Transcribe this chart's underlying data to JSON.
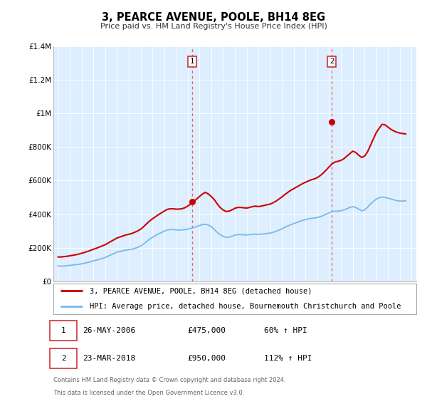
{
  "title": "3, PEARCE AVENUE, POOLE, BH14 8EG",
  "subtitle": "Price paid vs. HM Land Registry's House Price Index (HPI)",
  "bg_color": "#ddeeff",
  "hpi_color": "#7ab8e8",
  "price_color": "#cc0000",
  "vline_color": "#e06060",
  "ylim": [
    0,
    1400000
  ],
  "yticks": [
    0,
    200000,
    400000,
    600000,
    800000,
    1000000,
    1200000,
    1400000
  ],
  "ytick_labels": [
    "£0",
    "£200K",
    "£400K",
    "£600K",
    "£800K",
    "£1M",
    "£1.2M",
    "£1.4M"
  ],
  "xmin": 1994.6,
  "xmax": 2025.4,
  "sale1_x": 2006.4,
  "sale1_y": 475000,
  "sale2_x": 2018.23,
  "sale2_y": 950000,
  "legend_line1": "3, PEARCE AVENUE, POOLE, BH14 8EG (detached house)",
  "legend_line2": "HPI: Average price, detached house, Bournemouth Christchurch and Poole",
  "table_row1": [
    "1",
    "26-MAY-2006",
    "£475,000",
    "60% ↑ HPI"
  ],
  "table_row2": [
    "2",
    "23-MAR-2018",
    "£950,000",
    "112% ↑ HPI"
  ],
  "footer1": "Contains HM Land Registry data © Crown copyright and database right 2024.",
  "footer2": "This data is licensed under the Open Government Licence v3.0.",
  "hpi_data_x": [
    1995.0,
    1995.25,
    1995.5,
    1995.75,
    1996.0,
    1996.25,
    1996.5,
    1996.75,
    1997.0,
    1997.25,
    1997.5,
    1997.75,
    1998.0,
    1998.25,
    1998.5,
    1998.75,
    1999.0,
    1999.25,
    1999.5,
    1999.75,
    2000.0,
    2000.25,
    2000.5,
    2000.75,
    2001.0,
    2001.25,
    2001.5,
    2001.75,
    2002.0,
    2002.25,
    2002.5,
    2002.75,
    2003.0,
    2003.25,
    2003.5,
    2003.75,
    2004.0,
    2004.25,
    2004.5,
    2004.75,
    2005.0,
    2005.25,
    2005.5,
    2005.75,
    2006.0,
    2006.25,
    2006.5,
    2006.75,
    2007.0,
    2007.25,
    2007.5,
    2007.75,
    2008.0,
    2008.25,
    2008.5,
    2008.75,
    2009.0,
    2009.25,
    2009.5,
    2009.75,
    2010.0,
    2010.25,
    2010.5,
    2010.75,
    2011.0,
    2011.25,
    2011.5,
    2011.75,
    2012.0,
    2012.25,
    2012.5,
    2012.75,
    2013.0,
    2013.25,
    2013.5,
    2013.75,
    2014.0,
    2014.25,
    2014.5,
    2014.75,
    2015.0,
    2015.25,
    2015.5,
    2015.75,
    2016.0,
    2016.25,
    2016.5,
    2016.75,
    2017.0,
    2017.25,
    2017.5,
    2017.75,
    2018.0,
    2018.25,
    2018.5,
    2018.75,
    2019.0,
    2019.25,
    2019.5,
    2019.75,
    2020.0,
    2020.25,
    2020.5,
    2020.75,
    2021.0,
    2021.25,
    2021.5,
    2021.75,
    2022.0,
    2022.25,
    2022.5,
    2022.75,
    2023.0,
    2023.25,
    2023.5,
    2023.75,
    2024.0,
    2024.25,
    2024.5
  ],
  "hpi_data_y": [
    92000,
    90000,
    91000,
    93000,
    95000,
    97000,
    99000,
    101000,
    104000,
    108000,
    112000,
    117000,
    122000,
    126000,
    131000,
    136000,
    142000,
    150000,
    158000,
    166000,
    174000,
    178000,
    182000,
    186000,
    188000,
    191000,
    196000,
    202000,
    210000,
    222000,
    236000,
    250000,
    262000,
    272000,
    282000,
    290000,
    298000,
    305000,
    308000,
    308000,
    306000,
    305000,
    306000,
    308000,
    311000,
    315000,
    320000,
    326000,
    332000,
    338000,
    340000,
    335000,
    325000,
    310000,
    292000,
    278000,
    268000,
    262000,
    263000,
    268000,
    275000,
    278000,
    278000,
    277000,
    276000,
    278000,
    280000,
    281000,
    280000,
    281000,
    283000,
    285000,
    287000,
    292000,
    298000,
    305000,
    313000,
    322000,
    330000,
    337000,
    344000,
    350000,
    357000,
    363000,
    368000,
    372000,
    375000,
    377000,
    380000,
    385000,
    392000,
    400000,
    408000,
    415000,
    418000,
    418000,
    420000,
    425000,
    432000,
    440000,
    445000,
    440000,
    430000,
    420000,
    425000,
    440000,
    460000,
    475000,
    490000,
    498000,
    502000,
    500000,
    495000,
    490000,
    485000,
    480000,
    478000,
    478000,
    480000
  ],
  "price_data_x": [
    1995.0,
    1995.25,
    1995.5,
    1995.75,
    1996.0,
    1996.25,
    1996.5,
    1996.75,
    1997.0,
    1997.25,
    1997.5,
    1997.75,
    1998.0,
    1998.25,
    1998.5,
    1998.75,
    1999.0,
    1999.25,
    1999.5,
    1999.75,
    2000.0,
    2000.25,
    2000.5,
    2000.75,
    2001.0,
    2001.25,
    2001.5,
    2001.75,
    2002.0,
    2002.25,
    2002.5,
    2002.75,
    2003.0,
    2003.25,
    2003.5,
    2003.75,
    2004.0,
    2004.25,
    2004.5,
    2004.75,
    2005.0,
    2005.25,
    2005.5,
    2005.75,
    2006.0,
    2006.25,
    2006.5,
    2006.75,
    2007.0,
    2007.25,
    2007.5,
    2007.75,
    2008.0,
    2008.25,
    2008.5,
    2008.75,
    2009.0,
    2009.25,
    2009.5,
    2009.75,
    2010.0,
    2010.25,
    2010.5,
    2010.75,
    2011.0,
    2011.25,
    2011.5,
    2011.75,
    2012.0,
    2012.25,
    2012.5,
    2012.75,
    2013.0,
    2013.25,
    2013.5,
    2013.75,
    2014.0,
    2014.25,
    2014.5,
    2014.75,
    2015.0,
    2015.25,
    2015.5,
    2015.75,
    2016.0,
    2016.25,
    2016.5,
    2016.75,
    2017.0,
    2017.25,
    2017.5,
    2017.75,
    2018.0,
    2018.25,
    2018.5,
    2018.75,
    2019.0,
    2019.25,
    2019.5,
    2019.75,
    2020.0,
    2020.25,
    2020.5,
    2020.75,
    2021.0,
    2021.25,
    2021.5,
    2021.75,
    2022.0,
    2022.25,
    2022.5,
    2022.75,
    2023.0,
    2023.25,
    2023.5,
    2023.75,
    2024.0,
    2024.25,
    2024.5
  ],
  "price_data_y": [
    145000,
    145000,
    147000,
    149000,
    152000,
    155000,
    158000,
    162000,
    167000,
    172000,
    178000,
    184000,
    191000,
    197000,
    204000,
    211000,
    218000,
    228000,
    238000,
    248000,
    258000,
    264000,
    270000,
    276000,
    280000,
    285000,
    292000,
    300000,
    310000,
    325000,
    342000,
    358000,
    372000,
    384000,
    396000,
    407000,
    418000,
    428000,
    432000,
    432000,
    430000,
    430000,
    432000,
    438000,
    448000,
    460000,
    475000,
    490000,
    505000,
    520000,
    530000,
    520000,
    505000,
    487000,
    462000,
    440000,
    425000,
    416000,
    418000,
    425000,
    435000,
    440000,
    440000,
    438000,
    436000,
    440000,
    445000,
    448000,
    445000,
    448000,
    452000,
    456000,
    460000,
    468000,
    478000,
    490000,
    503000,
    517000,
    530000,
    542000,
    552000,
    562000,
    572000,
    582000,
    590000,
    598000,
    605000,
    610000,
    618000,
    630000,
    645000,
    663000,
    682000,
    700000,
    710000,
    715000,
    720000,
    730000,
    745000,
    760000,
    775000,
    768000,
    752000,
    738000,
    745000,
    770000,
    808000,
    848000,
    885000,
    912000,
    935000,
    932000,
    918000,
    905000,
    895000,
    888000,
    883000,
    880000,
    878000
  ]
}
